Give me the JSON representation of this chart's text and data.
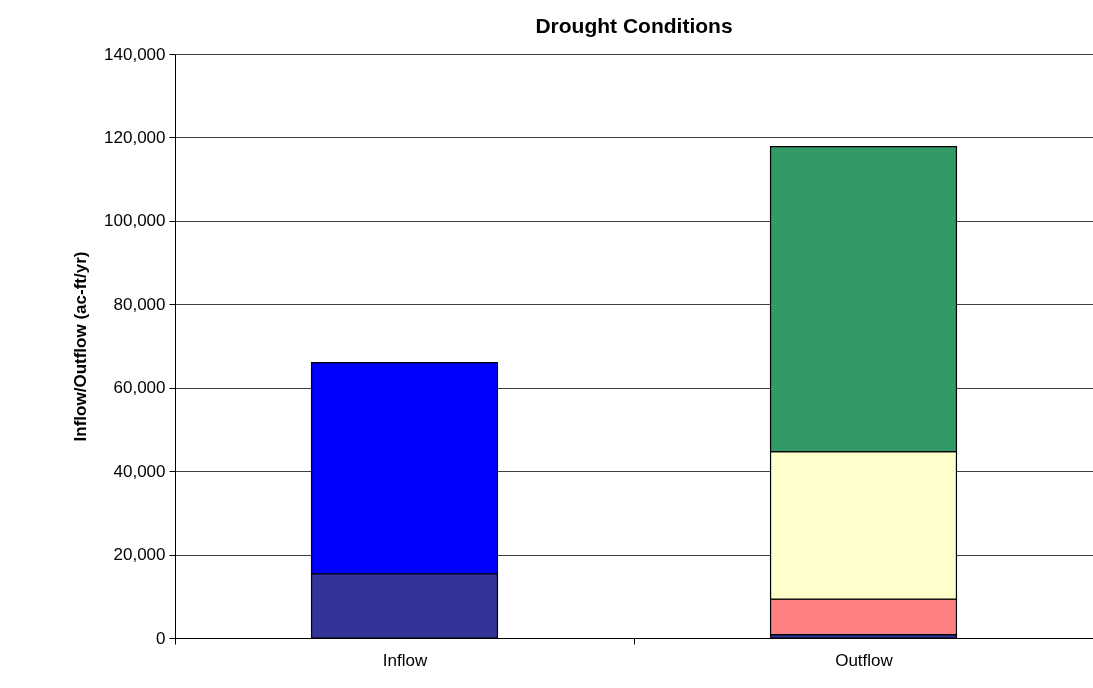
{
  "chart_data": {
    "type": "bar",
    "title": "Drought Conditions",
    "ylabel": "Inflow/Outflow (ac-ft/yr)",
    "categories": [
      "Inflow",
      "Outflow"
    ],
    "stacked": true,
    "grid": "y",
    "ylim": [
      0,
      140000
    ],
    "yticks": [
      0,
      {
        "value": 20000,
        "label": "20,000"
      },
      {
        "value": 40000,
        "label": "40,000"
      },
      {
        "value": 60000,
        "label": "60,000"
      },
      {
        "value": 80000,
        "label": "80,000"
      },
      {
        "value": 100000,
        "label": "100,000"
      },
      {
        "value": 120000,
        "label": "120,000"
      },
      {
        "value": 140000,
        "label": "140,000"
      }
    ],
    "series": [
      {
        "color": "#333399",
        "values": [
          15400,
          800
        ]
      },
      {
        "color": "#0000ff",
        "values": [
          50600,
          null
        ]
      },
      {
        "color": "#ff8080",
        "values": [
          null,
          8500
        ]
      },
      {
        "color": "#ffffcc",
        "values": [
          null,
          35400
        ]
      },
      {
        "color": "#339966",
        "values": [
          null,
          73100
        ]
      }
    ]
  }
}
